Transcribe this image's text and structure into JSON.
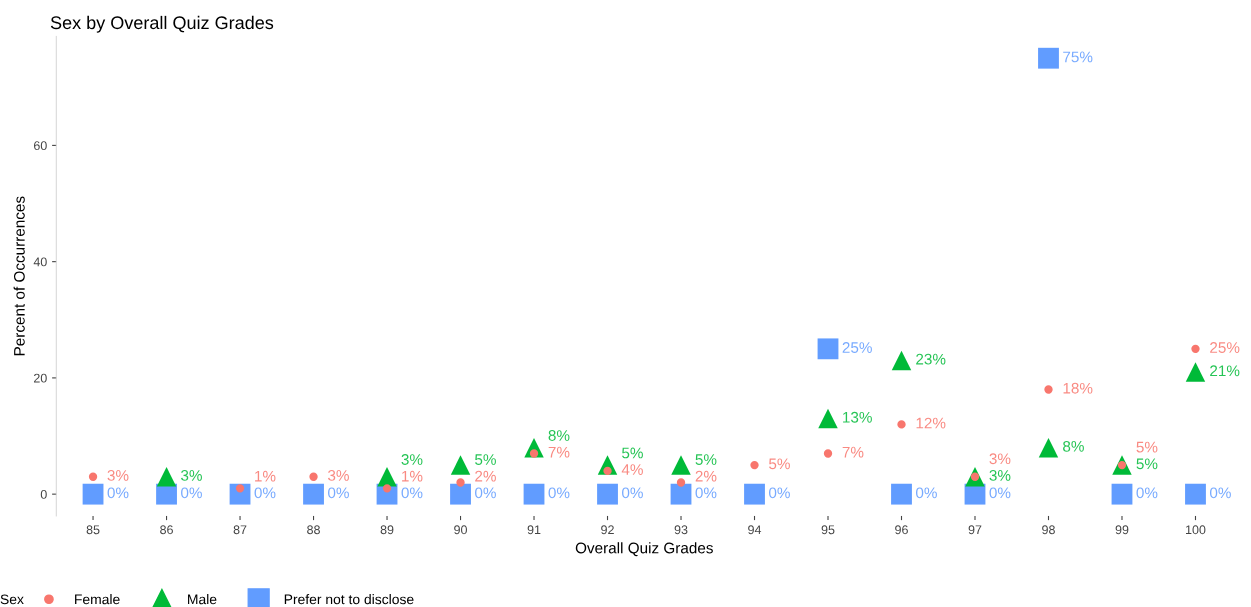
{
  "chart_data": {
    "type": "scatter",
    "title": "Sex by Overall Quiz Grades",
    "xlabel": "Overall Quiz Grades",
    "ylabel": "Percent of Occurrences",
    "legend_title": "Sex",
    "categories": [
      "85",
      "86",
      "87",
      "88",
      "89",
      "90",
      "91",
      "92",
      "93",
      "94",
      "95",
      "96",
      "97",
      "98",
      "99",
      "100"
    ],
    "series": [
      {
        "name": "Female",
        "color": "#f8766d",
        "marker": "circle",
        "values": [
          3,
          null,
          1,
          3,
          1,
          2,
          7,
          4,
          2,
          5,
          7,
          12,
          3,
          18,
          5,
          25
        ],
        "value_labels": [
          "3%",
          null,
          "1%",
          "3%",
          "1%",
          "2%",
          "7%",
          "4%",
          "2%",
          "5%",
          "7%",
          "12%",
          "3%",
          "18%",
          "5%",
          "25%"
        ]
      },
      {
        "name": "Male",
        "color": "#00ba38",
        "marker": "triangle",
        "values": [
          null,
          3,
          null,
          null,
          3,
          5,
          8,
          5,
          5,
          null,
          13,
          23,
          3,
          8,
          5,
          21
        ],
        "value_labels": [
          null,
          "3%",
          null,
          null,
          "3%",
          "5%",
          "8%",
          "5%",
          "5%",
          null,
          "13%",
          "23%",
          "3%",
          "8%",
          "5%",
          "21%"
        ]
      },
      {
        "name": "Prefer not to disclose",
        "color": "#619cff",
        "marker": "square",
        "values": [
          0,
          0,
          0,
          0,
          0,
          0,
          0,
          0,
          0,
          0,
          25,
          0,
          0,
          75,
          0,
          0
        ],
        "value_labels": [
          "0%",
          "0%",
          "0%",
          "0%",
          "0%",
          "0%",
          "0%",
          "0%",
          "0%",
          "0%",
          "25%",
          "0%",
          "0%",
          "75%",
          "0%",
          "0%"
        ]
      }
    ],
    "ylim": [
      -3.75,
      78.75
    ],
    "yticks": [
      0,
      20,
      40,
      60
    ],
    "grid": false,
    "legend": "bottom"
  }
}
